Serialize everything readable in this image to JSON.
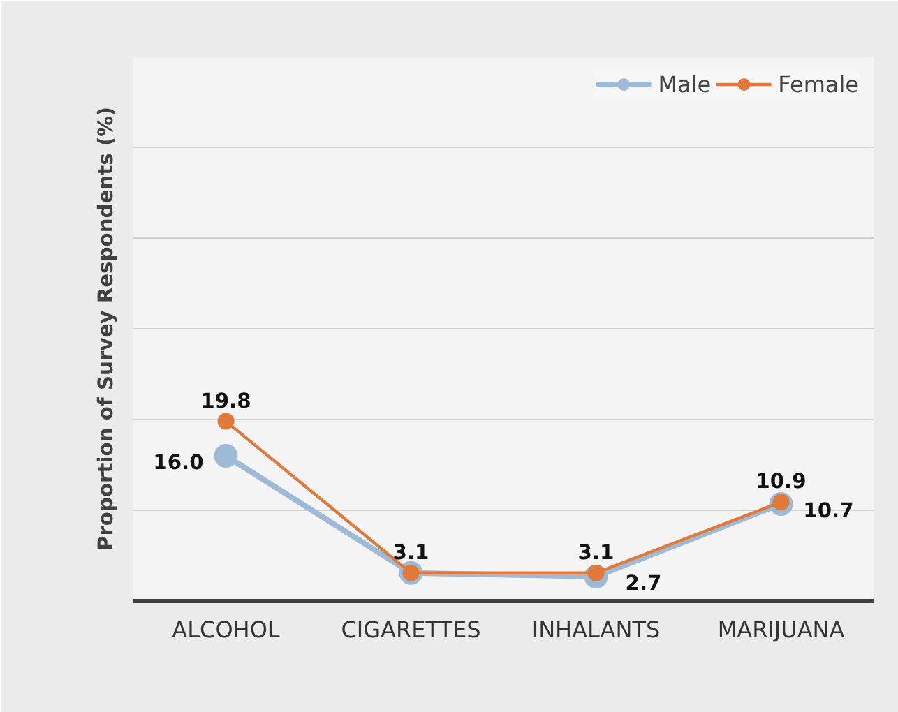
{
  "chart_data": {
    "type": "line",
    "ylabel": "Proportion of Survey Respondents (%)",
    "categories": [
      "ALCOHOL",
      "CIGARETTES",
      "INHALANTS",
      "MARIJUANA"
    ],
    "series": [
      {
        "name": "Male",
        "color": "#9dbad6",
        "values": [
          16.0,
          3.1,
          2.7,
          10.7
        ],
        "value_labels": [
          "16.0",
          null,
          "2.7",
          "10.7"
        ]
      },
      {
        "name": "Female",
        "color": "#e0793a",
        "values": [
          19.8,
          3.1,
          3.1,
          10.9
        ],
        "value_labels": [
          "19.8",
          "3.1",
          "3.1",
          "10.9"
        ]
      }
    ],
    "ylim": [
      0,
      60
    ],
    "yticks": [
      {
        "value": 0,
        "label": null
      },
      {
        "value": 10,
        "label": null
      },
      {
        "value": 20,
        "label": null
      },
      {
        "value": 30,
        "label": null
      },
      {
        "value": 40,
        "label": null
      },
      {
        "value": 50,
        "label": null
      },
      {
        "value": 60,
        "label": null
      }
    ],
    "tick_labels": "x",
    "grid": "y",
    "legend": "top right",
    "marker": "circle",
    "line_style": "solid"
  }
}
